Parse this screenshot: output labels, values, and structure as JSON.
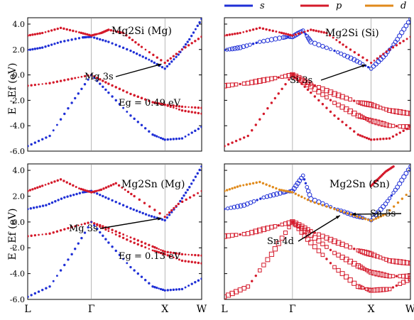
{
  "chart_data": {
    "type": "scatter",
    "legend": {
      "placement": "top-right",
      "entries": [
        {
          "label": "s",
          "color": "#1f2fd6"
        },
        {
          "label": "p",
          "color": "#d4192a"
        },
        {
          "label": "d",
          "color": "#e08a1b"
        }
      ]
    },
    "ylabel": "E - Ef (eV)",
    "ylim": [
      -6.0,
      4.5
    ],
    "yticks": [
      "4.0",
      "2.0",
      "0.0",
      "-2.0",
      "-4.0",
      "-6.0"
    ],
    "kpath": [
      "L",
      "Γ",
      "X",
      "W"
    ],
    "kpath_positions": [
      0,
      0.866,
      1.866,
      2.366
    ],
    "panels": [
      {
        "title": "Mg2Si (Mg)",
        "annotations": [
          {
            "text": "Mg 3s",
            "target": [
              1.82,
              0.85
            ]
          },
          {
            "text": "Eg = 0.49 eV"
          }
        ],
        "bands": [
          {
            "orbital": "s",
            "weight": 0.7,
            "points": [
              [
                0,
                1.95
              ],
              [
                0.2,
                2.15
              ],
              [
                0.45,
                2.6
              ],
              [
                0.75,
                2.95
              ],
              [
                0.866,
                3.0
              ],
              [
                1.1,
                2.6
              ],
              [
                1.4,
                1.9
              ],
              [
                1.65,
                1.2
              ],
              [
                1.866,
                0.49
              ],
              [
                2.05,
                1.6
              ],
              [
                2.2,
                2.8
              ],
              [
                2.366,
                4.4
              ]
            ]
          },
          {
            "orbital": "p",
            "weight": 0.6,
            "points": [
              [
                0,
                3.1
              ],
              [
                0.2,
                3.3
              ],
              [
                0.45,
                3.7
              ],
              [
                0.7,
                3.35
              ],
              [
                0.866,
                3.1
              ],
              [
                1.0,
                3.3
              ],
              [
                1.1,
                3.55
              ],
              [
                1.3,
                3.3
              ],
              [
                1.55,
                2.2
              ],
              [
                1.866,
                0.95
              ],
              [
                2.1,
                2.0
              ],
              [
                2.366,
                3.0
              ]
            ]
          },
          {
            "orbital": "p",
            "weight": 0.5,
            "points": [
              [
                0,
                -0.85
              ],
              [
                0.3,
                -0.65
              ],
              [
                0.6,
                -0.3
              ],
              [
                0.866,
                0.0
              ],
              [
                1.1,
                -0.7
              ],
              [
                1.4,
                -1.5
              ],
              [
                1.7,
                -2.15
              ],
              [
                1.866,
                -2.35
              ],
              [
                2.1,
                -2.8
              ],
              [
                2.366,
                -3.05
              ]
            ]
          },
          {
            "orbital": "p",
            "weight": 0.5,
            "points": [
              [
                0.866,
                0.0
              ],
              [
                1.1,
                -0.7
              ],
              [
                1.4,
                -1.5
              ],
              [
                1.7,
                -2.15
              ],
              [
                1.866,
                -2.35
              ],
              [
                2.1,
                -2.5
              ],
              [
                2.366,
                -2.6
              ]
            ]
          },
          {
            "orbital": "s",
            "weight": 0.6,
            "points": [
              [
                0,
                -5.6
              ],
              [
                0.3,
                -4.8
              ],
              [
                0.6,
                -2.2
              ],
              [
                0.866,
                0.0
              ],
              [
                1.1,
                -1.4
              ],
              [
                1.4,
                -3.2
              ],
              [
                1.7,
                -4.7
              ],
              [
                1.866,
                -5.1
              ],
              [
                2.1,
                -5.0
              ],
              [
                2.366,
                -4.1
              ]
            ]
          }
        ]
      },
      {
        "title": "Mg2Si (Si)",
        "annotations": [
          {
            "text": "Si 3s",
            "target": [
              1.8,
              0.8
            ]
          }
        ],
        "bands": [
          {
            "orbital": "s",
            "weight": 0.9,
            "points": [
              [
                0,
                1.95
              ],
              [
                0.2,
                2.15
              ],
              [
                0.45,
                2.6
              ],
              [
                0.75,
                2.95
              ],
              [
                0.866,
                3.0
              ],
              [
                1.0,
                3.5
              ],
              [
                1.1,
                2.6
              ],
              [
                1.4,
                1.9
              ],
              [
                1.65,
                1.2
              ],
              [
                1.866,
                0.49
              ],
              [
                2.05,
                1.6
              ],
              [
                2.2,
                2.8
              ],
              [
                2.366,
                4.4
              ]
            ]
          },
          {
            "orbital": "p",
            "weight": 0.6,
            "points": [
              [
                0,
                3.1
              ],
              [
                0.2,
                3.3
              ],
              [
                0.45,
                3.7
              ],
              [
                0.7,
                3.35
              ],
              [
                0.866,
                3.1
              ],
              [
                1.1,
                3.55
              ],
              [
                1.3,
                3.3
              ],
              [
                1.55,
                2.2
              ],
              [
                1.866,
                0.95
              ],
              [
                2.1,
                2.0
              ],
              [
                2.366,
                3.0
              ]
            ]
          },
          {
            "orbital": "p",
            "weight": 1.0,
            "points": [
              [
                0,
                -0.85
              ],
              [
                0.3,
                -0.65
              ],
              [
                0.6,
                -0.3
              ],
              [
                0.866,
                0.0
              ],
              [
                1.1,
                -0.7
              ],
              [
                1.4,
                -1.5
              ],
              [
                1.7,
                -2.15
              ],
              [
                1.866,
                -2.35
              ],
              [
                2.1,
                -2.8
              ],
              [
                2.366,
                -3.05
              ]
            ]
          },
          {
            "orbital": "p",
            "weight": 1.0,
            "points": [
              [
                0.866,
                0.0
              ],
              [
                1.1,
                -0.9
              ],
              [
                1.4,
                -2.2
              ],
              [
                1.7,
                -3.2
              ],
              [
                1.866,
                -3.6
              ],
              [
                2.1,
                -4.0
              ],
              [
                2.366,
                -4.1
              ]
            ]
          },
          {
            "orbital": "p",
            "weight": 0.8,
            "points": [
              [
                0,
                -5.6
              ],
              [
                0.3,
                -4.8
              ],
              [
                0.6,
                -2.2
              ],
              [
                0.866,
                0.0
              ],
              [
                1.1,
                -1.4
              ],
              [
                1.4,
                -3.2
              ],
              [
                1.7,
                -4.7
              ],
              [
                1.866,
                -5.1
              ],
              [
                2.1,
                -5.0
              ],
              [
                2.366,
                -4.1
              ]
            ]
          }
        ]
      },
      {
        "title": "Mg2Sn (Mg)",
        "annotations": [
          {
            "text": "Mg 3s",
            "target": [
              1.82,
              0.3
            ]
          },
          {
            "text": "Eg = 0.13 eV"
          }
        ],
        "bands": [
          {
            "orbital": "s",
            "weight": 0.8,
            "points": [
              [
                0,
                1.0
              ],
              [
                0.25,
                1.3
              ],
              [
                0.5,
                1.9
              ],
              [
                0.75,
                2.3
              ],
              [
                0.866,
                2.4
              ],
              [
                1.1,
                1.8
              ],
              [
                1.4,
                1.05
              ],
              [
                1.65,
                0.5
              ],
              [
                1.866,
                0.13
              ],
              [
                2.05,
                1.4
              ],
              [
                2.2,
                2.7
              ],
              [
                2.366,
                4.3
              ]
            ]
          },
          {
            "orbital": "p",
            "weight": 0.6,
            "points": [
              [
                0,
                2.4
              ],
              [
                0.2,
                2.8
              ],
              [
                0.45,
                3.3
              ],
              [
                0.7,
                2.6
              ],
              [
                0.866,
                2.3
              ],
              [
                1.0,
                2.5
              ],
              [
                1.2,
                3.0
              ],
              [
                1.45,
                2.0
              ],
              [
                1.866,
                0.4
              ],
              [
                2.05,
                1.4
              ],
              [
                2.366,
                2.4
              ]
            ]
          },
          {
            "orbital": "p",
            "weight": 0.5,
            "points": [
              [
                0,
                -1.1
              ],
              [
                0.3,
                -0.9
              ],
              [
                0.6,
                -0.4
              ],
              [
                0.866,
                0.0
              ],
              [
                1.1,
                -0.7
              ],
              [
                1.4,
                -1.5
              ],
              [
                1.7,
                -2.2
              ],
              [
                1.866,
                -2.5
              ],
              [
                2.1,
                -3.0
              ],
              [
                2.366,
                -3.2
              ]
            ]
          },
          {
            "orbital": "p",
            "weight": 0.5,
            "points": [
              [
                0.866,
                0.0
              ],
              [
                1.1,
                -0.5
              ],
              [
                1.4,
                -1.2
              ],
              [
                1.7,
                -1.9
              ],
              [
                1.866,
                -2.3
              ],
              [
                2.1,
                -2.5
              ],
              [
                2.366,
                -2.6
              ]
            ]
          },
          {
            "orbital": "s",
            "weight": 0.6,
            "points": [
              [
                0,
                -5.8
              ],
              [
                0.3,
                -5.0
              ],
              [
                0.6,
                -2.5
              ],
              [
                0.866,
                0.0
              ],
              [
                1.1,
                -1.6
              ],
              [
                1.4,
                -3.5
              ],
              [
                1.7,
                -5.0
              ],
              [
                1.866,
                -5.3
              ],
              [
                2.1,
                -5.2
              ],
              [
                2.366,
                -4.4
              ]
            ]
          }
        ]
      },
      {
        "title": "Mg2Sn (Sn)",
        "annotations": [
          {
            "text": "Sn 5s",
            "target": [
              1.62,
              0.6
            ]
          },
          {
            "text": "Sn 4d",
            "target": [
              1.47,
              0.5
            ]
          }
        ],
        "bands": [
          {
            "orbital": "s",
            "weight": 0.9,
            "points": [
              [
                0,
                1.0
              ],
              [
                0.25,
                1.3
              ],
              [
                0.5,
                1.9
              ],
              [
                0.75,
                2.3
              ],
              [
                0.866,
                2.4
              ],
              [
                1.0,
                3.6
              ],
              [
                1.1,
                1.8
              ],
              [
                1.4,
                1.05
              ],
              [
                1.65,
                0.5
              ],
              [
                1.866,
                0.13
              ],
              [
                2.05,
                1.4
              ],
              [
                2.2,
                2.7
              ],
              [
                2.366,
                4.3
              ]
            ]
          },
          {
            "orbital": "d",
            "weight": 0.7,
            "points": [
              [
                0,
                2.4
              ],
              [
                0.2,
                2.8
              ],
              [
                0.45,
                3.1
              ],
              [
                0.7,
                2.5
              ],
              [
                0.866,
                2.3
              ],
              [
                1.1,
                1.6
              ],
              [
                1.4,
                1.0
              ],
              [
                1.65,
                0.5
              ],
              [
                1.866,
                0.1
              ],
              [
                2.05,
                0.6
              ],
              [
                2.366,
                2.4
              ]
            ]
          },
          {
            "orbital": "p",
            "weight": 1.0,
            "points": [
              [
                0,
                -1.1
              ],
              [
                0.3,
                -0.9
              ],
              [
                0.6,
                -0.4
              ],
              [
                0.866,
                0.0
              ],
              [
                1.1,
                -0.7
              ],
              [
                1.4,
                -1.5
              ],
              [
                1.7,
                -2.2
              ],
              [
                1.866,
                -2.5
              ],
              [
                2.1,
                -3.0
              ],
              [
                2.366,
                -3.2
              ]
            ]
          },
          {
            "orbital": "p",
            "weight": 1.0,
            "points": [
              [
                0.866,
                0.0
              ],
              [
                1.1,
                -1.0
              ],
              [
                1.4,
                -2.4
              ],
              [
                1.7,
                -3.4
              ],
              [
                1.866,
                -3.9
              ],
              [
                2.1,
                -4.2
              ],
              [
                2.366,
                -4.2
              ]
            ]
          },
          {
            "orbital": "p",
            "weight": 0.9,
            "points": [
              [
                0,
                -5.8
              ],
              [
                0.3,
                -5.0
              ],
              [
                0.6,
                -2.5
              ],
              [
                0.866,
                0.0
              ],
              [
                1.1,
                -1.6
              ],
              [
                1.4,
                -3.5
              ],
              [
                1.7,
                -5.0
              ],
              [
                1.866,
                -5.3
              ],
              [
                2.1,
                -5.2
              ],
              [
                2.366,
                -4.4
              ]
            ]
          },
          {
            "orbital": "p",
            "weight": 0.8,
            "points": [
              [
                1.866,
                2.8
              ],
              [
                1.95,
                3.3
              ],
              [
                2.05,
                3.9
              ],
              [
                2.15,
                4.3
              ]
            ]
          }
        ]
      }
    ]
  }
}
